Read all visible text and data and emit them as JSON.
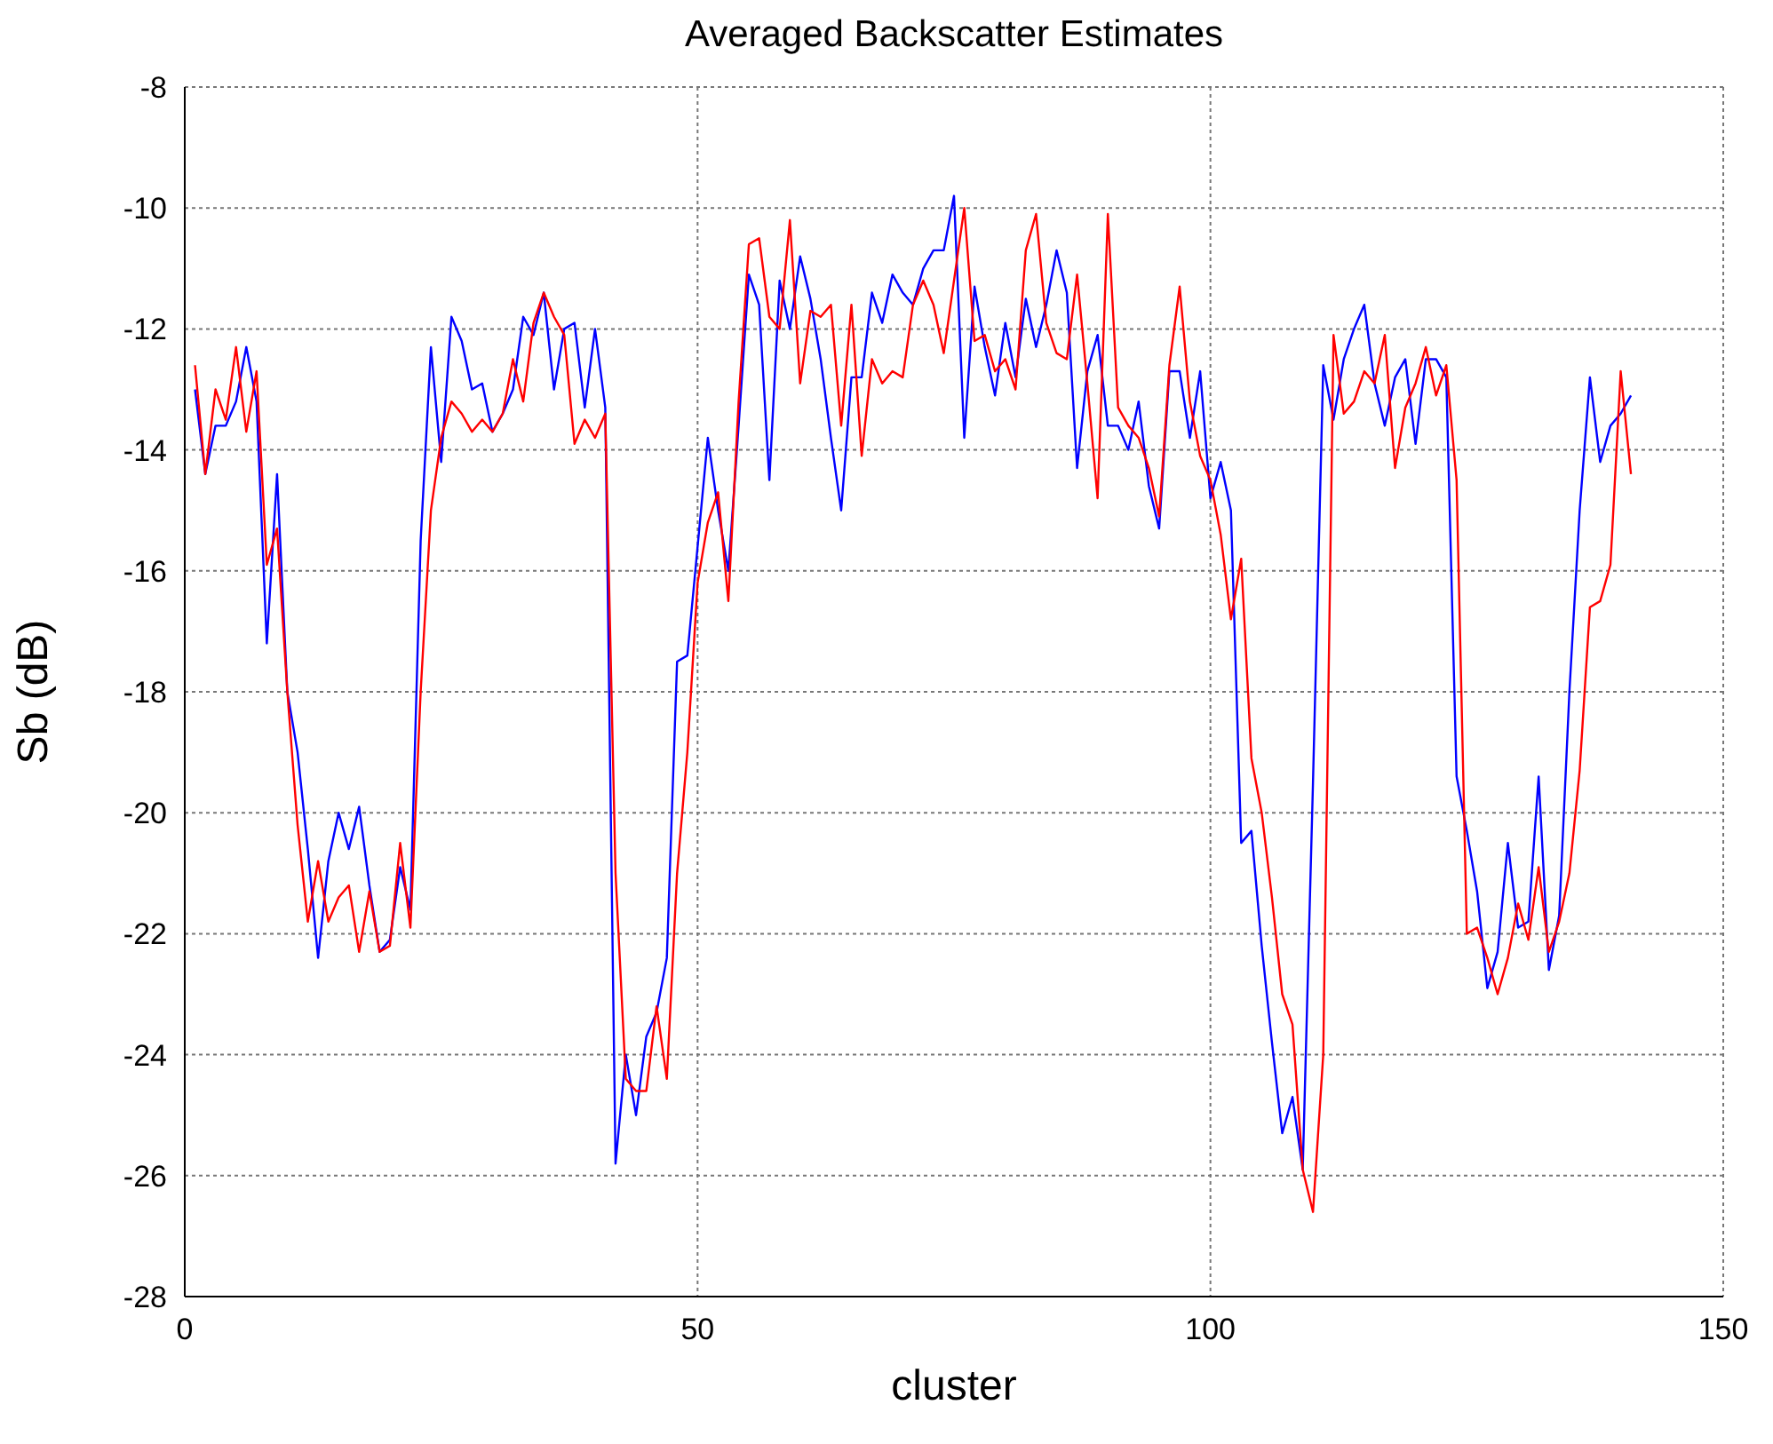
{
  "chart_data": {
    "type": "line",
    "title": "Averaged Backscatter Estimates",
    "xlabel": "cluster",
    "ylabel": "Sb (dB)",
    "x": [
      1,
      2,
      3,
      4,
      5,
      6,
      7,
      8,
      9,
      10,
      11,
      12,
      13,
      14,
      15,
      16,
      17,
      18,
      19,
      20,
      21,
      22,
      23,
      24,
      25,
      26,
      27,
      28,
      29,
      30,
      31,
      32,
      33,
      34,
      35,
      36,
      37,
      38,
      39,
      40,
      41,
      42,
      43,
      44,
      45,
      46,
      47,
      48,
      49,
      50,
      51,
      52,
      53,
      54,
      55,
      56,
      57,
      58,
      59,
      60,
      61,
      62,
      63,
      64,
      65,
      66,
      67,
      68,
      69,
      70,
      71,
      72,
      73,
      74,
      75,
      76,
      77,
      78,
      79,
      80,
      81,
      82,
      83,
      84,
      85,
      86,
      87,
      88,
      89,
      90,
      91,
      92,
      93,
      94,
      95,
      96,
      97,
      98,
      99,
      100,
      101,
      102,
      103,
      104,
      105,
      106,
      107,
      108,
      109,
      110,
      111,
      112,
      113,
      114,
      115,
      116,
      117,
      118,
      119,
      120,
      121,
      122,
      123,
      124,
      125,
      126,
      127,
      128,
      129,
      130,
      131,
      132,
      133,
      134,
      135,
      136,
      137,
      138,
      139,
      140,
      141
    ],
    "series": [
      {
        "color": "#0000ff",
        "values": [
          -13,
          -14.4,
          -13.6,
          -13.6,
          -13.2,
          -12.3,
          -13.2,
          -17.2,
          -14.4,
          -18,
          -19,
          -20.6,
          -22.4,
          -20.8,
          -20,
          -20.6,
          -19.9,
          -21.2,
          -22.3,
          -22.1,
          -20.9,
          -21.6,
          -15.5,
          -12.3,
          -14.2,
          -11.8,
          -12.2,
          -13,
          -12.9,
          -13.7,
          -13.4,
          -13,
          -11.8,
          -12.1,
          -11.4,
          -13,
          -12,
          -11.9,
          -13.3,
          -12,
          -13.3,
          -25.8,
          -24,
          -25,
          -23.7,
          -23.3,
          -22.4,
          -17.5,
          -17.4,
          -15.6,
          -13.8,
          -15,
          -16,
          -13.6,
          -11.1,
          -11.6,
          -14.5,
          -11.2,
          -12,
          -10.8,
          -11.5,
          -12.5,
          -13.8,
          -15,
          -12.8,
          -12.8,
          -11.4,
          -11.9,
          -11.1,
          -11.4,
          -11.6,
          -11,
          -10.7,
          -10.7,
          -9.8,
          -13.8,
          -11.3,
          -12.3,
          -13.1,
          -11.9,
          -12.8,
          -11.5,
          -12.3,
          -11.6,
          -10.7,
          -11.4,
          -14.3,
          -12.7,
          -12.1,
          -13.6,
          -13.6,
          -14,
          -13.2,
          -14.6,
          -15.3,
          -12.7,
          -12.7,
          -13.8,
          -12.7,
          -14.8,
          -14.2,
          -15,
          -20.5,
          -20.3,
          -22.2,
          -23.8,
          -25.3,
          -24.7,
          -25.9,
          -19.5,
          -12.6,
          -13.5,
          -12.5,
          -12,
          -11.6,
          -12.9,
          -13.6,
          -12.8,
          -12.5,
          -13.9,
          -12.5,
          -12.5,
          -12.8,
          -19.4,
          -20.3,
          -21.3,
          -22.9,
          -22.3,
          -20.5,
          -21.9,
          -21.8,
          -19.4,
          -22.6,
          -21.7,
          -18,
          -15,
          -12.8,
          -14.2,
          -13.6,
          -13.4,
          -13.1
        ]
      },
      {
        "color": "#ff0000",
        "values": [
          -12.6,
          -14.4,
          -13,
          -13.5,
          -12.3,
          -13.7,
          -12.7,
          -15.9,
          -15.3,
          -18,
          -20.2,
          -21.8,
          -20.8,
          -21.8,
          -21.4,
          -21.2,
          -22.3,
          -21.3,
          -22.3,
          -22.2,
          -20.5,
          -21.9,
          -18,
          -15,
          -13.8,
          -13.2,
          -13.4,
          -13.7,
          -13.5,
          -13.7,
          -13.4,
          -12.5,
          -13.2,
          -11.9,
          -11.4,
          -11.8,
          -12.1,
          -13.9,
          -13.5,
          -13.8,
          -13.4,
          -21,
          -24.4,
          -24.6,
          -24.6,
          -23.2,
          -24.4,
          -21,
          -19,
          -16.2,
          -15.2,
          -14.7,
          -16.5,
          -13.2,
          -10.6,
          -10.5,
          -11.8,
          -12,
          -10.2,
          -12.9,
          -11.7,
          -11.8,
          -11.6,
          -13.6,
          -11.6,
          -14.1,
          -12.5,
          -12.9,
          -12.7,
          -12.8,
          -11.6,
          -11.2,
          -11.6,
          -12.4,
          -11.2,
          -10,
          -12.2,
          -12.1,
          -12.7,
          -12.5,
          -13,
          -10.7,
          -10.1,
          -11.9,
          -12.4,
          -12.5,
          -11.1,
          -12.9,
          -14.8,
          -10.1,
          -13.3,
          -13.6,
          -13.8,
          -14.3,
          -15.1,
          -12.6,
          -11.3,
          -13.2,
          -14.1,
          -14.5,
          -15.4,
          -16.8,
          -15.8,
          -19.1,
          -20,
          -21.4,
          -23,
          -23.5,
          -25.9,
          -26.6,
          -24,
          -12.1,
          -13.4,
          -13.2,
          -12.7,
          -12.9,
          -12.1,
          -14.3,
          -13.3,
          -12.9,
          -12.3,
          -13.1,
          -12.6,
          -14.5,
          -22,
          -21.9,
          -22.4,
          -23,
          -22.4,
          -21.5,
          -22.1,
          -20.9,
          -22.3,
          -21.8,
          -21,
          -19.3,
          -16.6,
          -16.5,
          -15.9,
          -12.7,
          -14.4
        ]
      }
    ],
    "xlim": [
      0,
      150
    ],
    "xticks": [
      0,
      50,
      100,
      150
    ],
    "ylim": [
      -28,
      -8
    ],
    "yticks": [
      -28,
      -26,
      -24,
      -22,
      -20,
      -18,
      -16,
      -14,
      -12,
      -10,
      -8
    ],
    "grid": true,
    "marker": "none",
    "line_style": "solid"
  }
}
